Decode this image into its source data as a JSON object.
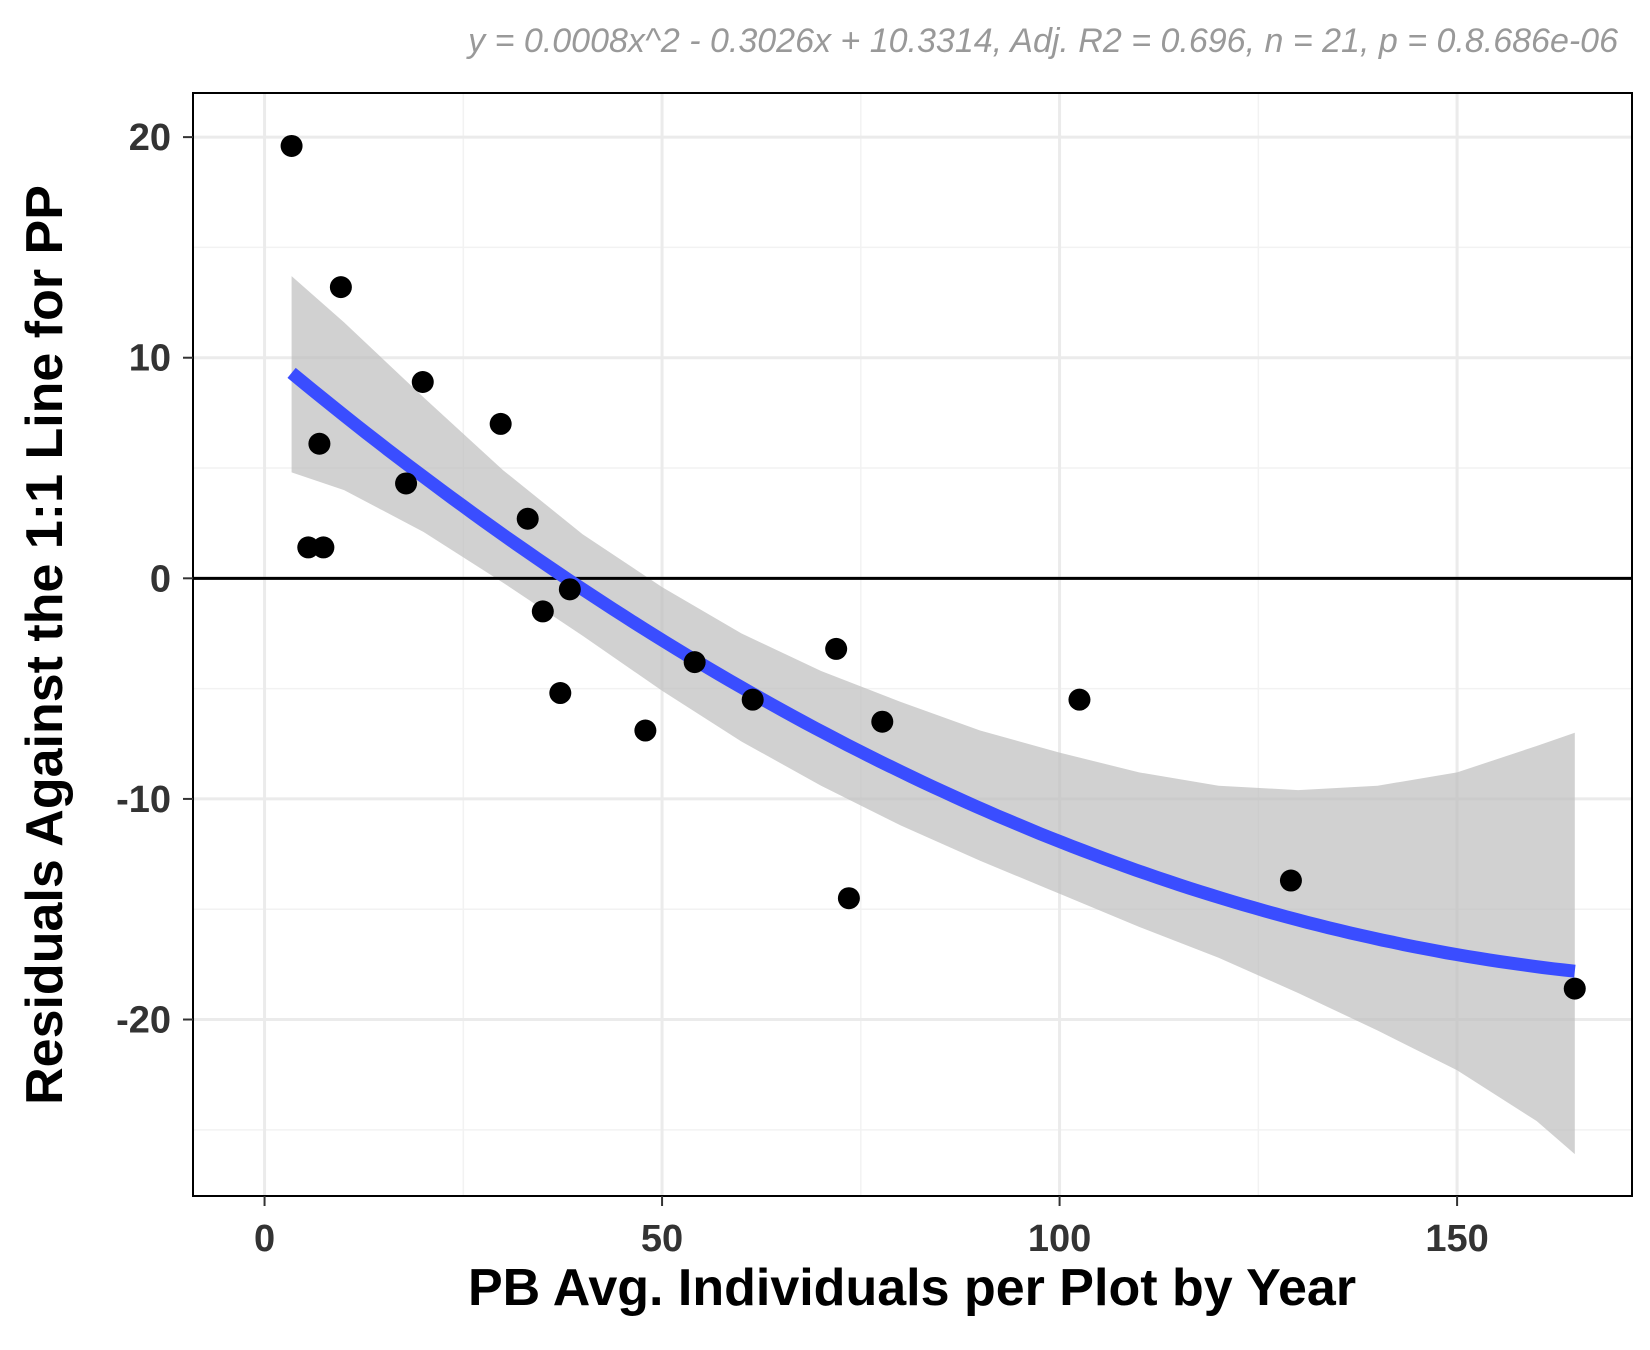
{
  "chart_data": {
    "type": "scatter",
    "subtitle": "y = 0.0008x^2 - 0.3026x + 10.3314, Adj. R2 = 0.696, n = 21, p = 0.8.686e-06",
    "xlabel": "PB Avg. Individuals per Plot by Year",
    "ylabel": "Residuals Against the 1:1 Line for PP",
    "xlim": [
      -9,
      172
    ],
    "ylim": [
      -28,
      22
    ],
    "x_ticks": [
      0,
      50,
      100,
      150
    ],
    "x_tick_labels": [
      "0",
      "50",
      "100",
      "150"
    ],
    "y_ticks": [
      20,
      10,
      0,
      -10,
      -20
    ],
    "y_tick_labels": [
      "20",
      "10",
      "0",
      "-10",
      "-20"
    ],
    "grid": true,
    "reference_line_y": 0,
    "points": [
      {
        "x": 3.4,
        "y": 19.6
      },
      {
        "x": 5.5,
        "y": 1.4
      },
      {
        "x": 6.9,
        "y": 6.1
      },
      {
        "x": 7.4,
        "y": 1.4
      },
      {
        "x": 9.6,
        "y": 13.2
      },
      {
        "x": 17.8,
        "y": 4.3
      },
      {
        "x": 19.9,
        "y": 8.9
      },
      {
        "x": 29.7,
        "y": 7.0
      },
      {
        "x": 33.1,
        "y": 2.7
      },
      {
        "x": 35.0,
        "y": -1.5
      },
      {
        "x": 37.2,
        "y": -5.2
      },
      {
        "x": 38.4,
        "y": -0.5
      },
      {
        "x": 47.9,
        "y": -6.9
      },
      {
        "x": 54.1,
        "y": -3.8
      },
      {
        "x": 61.4,
        "y": -5.5
      },
      {
        "x": 71.9,
        "y": -3.2
      },
      {
        "x": 73.5,
        "y": -14.5
      },
      {
        "x": 77.7,
        "y": -6.5
      },
      {
        "x": 102.5,
        "y": -5.5
      },
      {
        "x": 129.1,
        "y": -13.7
      },
      {
        "x": 164.8,
        "y": -18.6
      }
    ],
    "fit": {
      "a": 0.0008,
      "b": -0.3026,
      "c": 10.3314,
      "x_range": [
        3.4,
        164.8
      ],
      "color": "#3A4DFF"
    },
    "confidence_band": {
      "color": "#BDBDBD",
      "x": [
        3.4,
        10,
        20,
        30,
        40,
        50,
        60,
        70,
        80,
        90,
        100,
        110,
        120,
        130,
        140,
        150,
        160,
        164.8
      ],
      "upper": [
        13.7,
        11.6,
        8.2,
        4.9,
        2.0,
        -0.4,
        -2.5,
        -4.2,
        -5.6,
        -6.9,
        -7.9,
        -8.8,
        -9.4,
        -9.6,
        -9.4,
        -8.8,
        -7.6,
        -7.0
      ],
      "lower": [
        4.8,
        4.0,
        2.1,
        -0.2,
        -2.6,
        -5.1,
        -7.4,
        -9.4,
        -11.2,
        -12.8,
        -14.3,
        -15.8,
        -17.2,
        -18.8,
        -20.5,
        -22.3,
        -24.6,
        -26.1
      ]
    },
    "point_color": "#000000"
  }
}
